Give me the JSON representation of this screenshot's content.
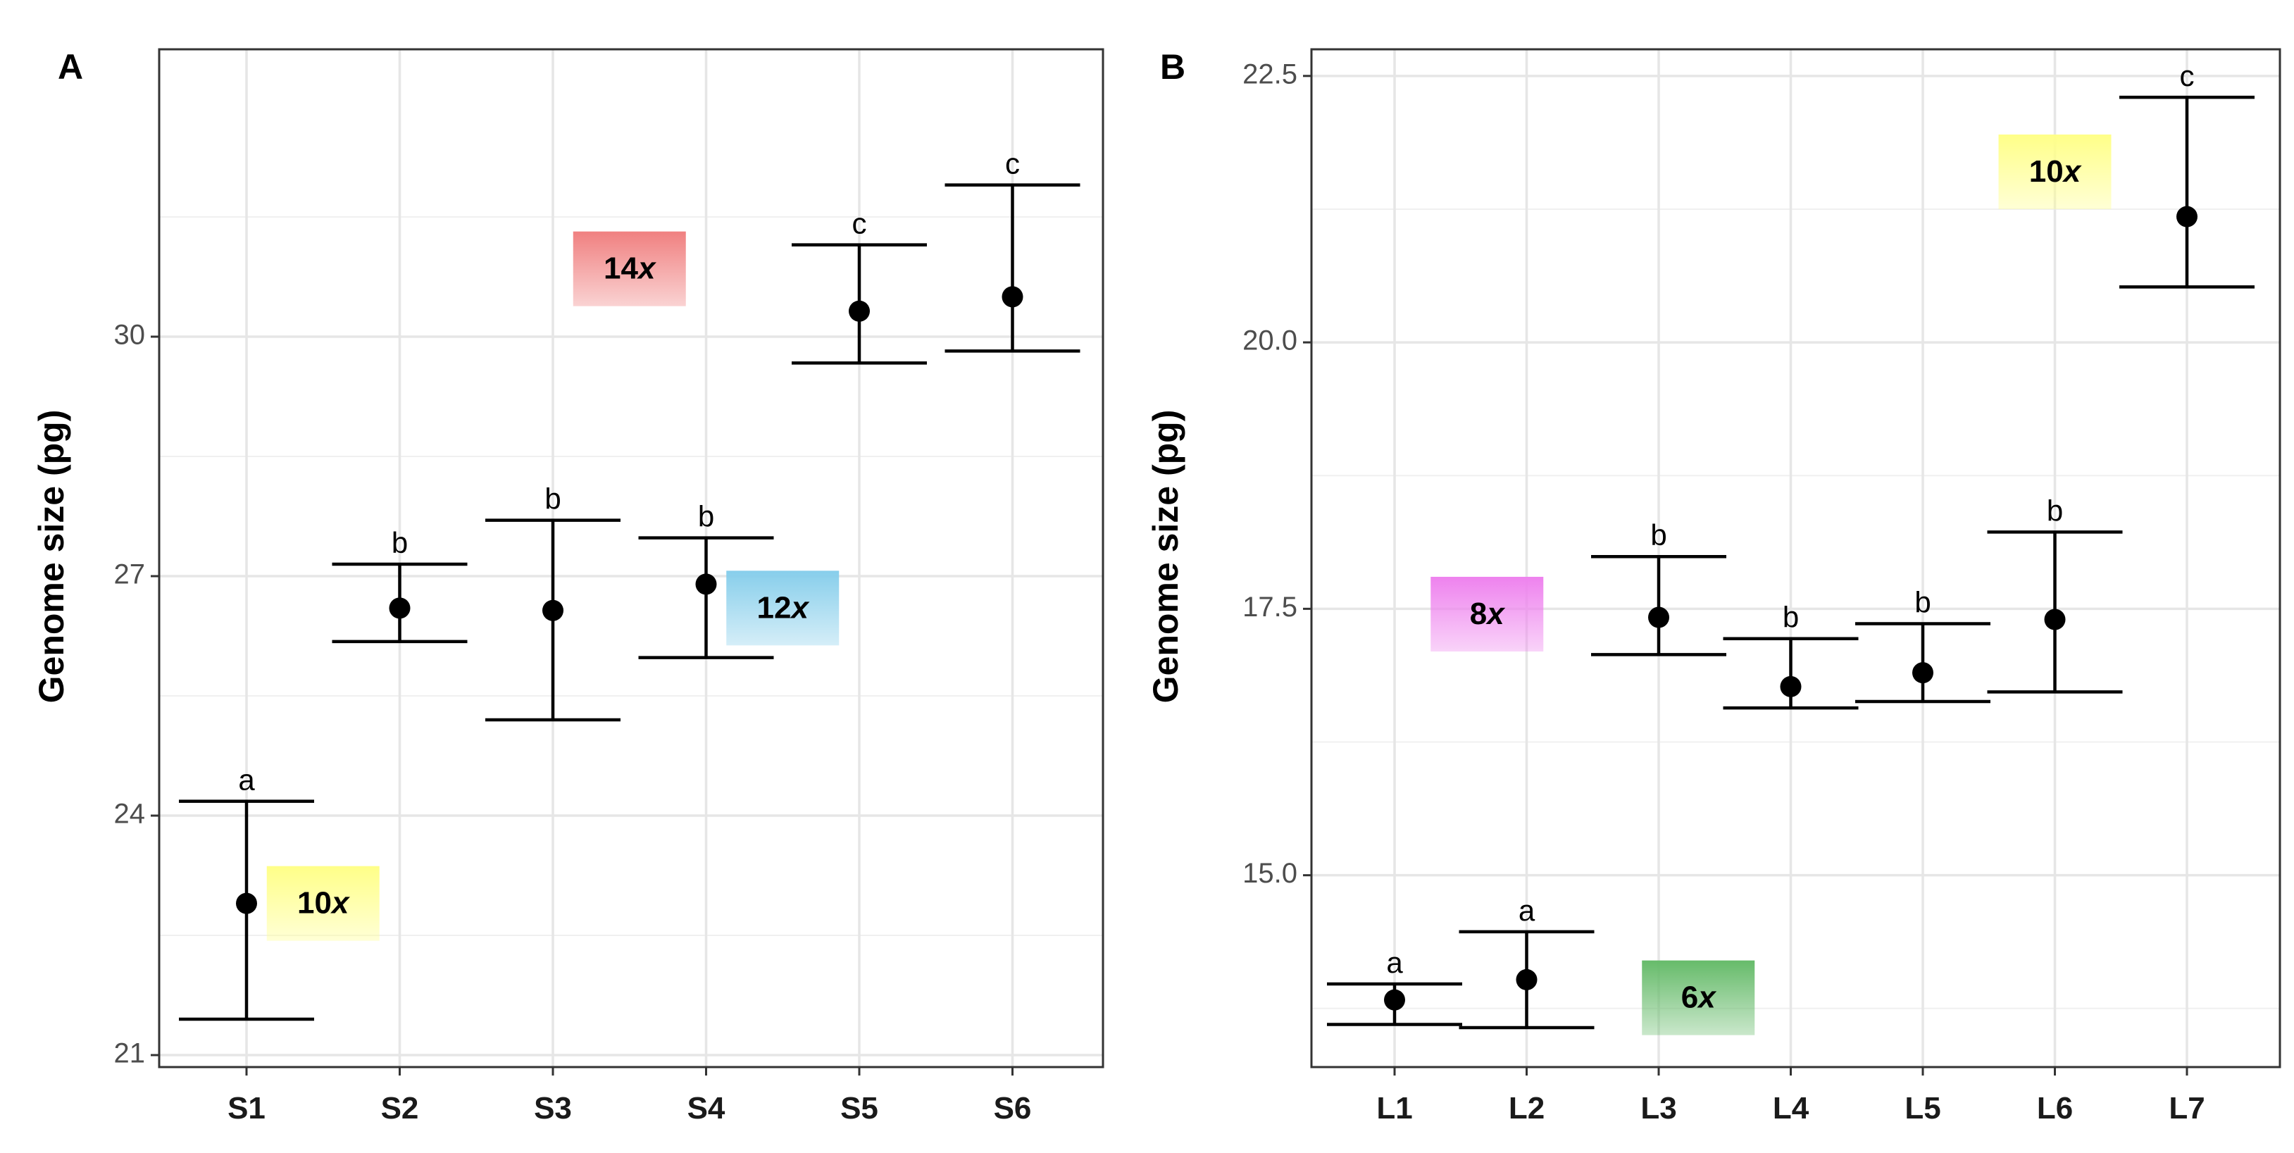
{
  "chart_data": [
    {
      "type": "scatter",
      "panel": "A",
      "ylabel": "Genome size (pg)",
      "xlabel": "",
      "categories": [
        "S1",
        "S2",
        "S3",
        "S4",
        "S5",
        "S6"
      ],
      "ylim": [
        20.85,
        33.6
      ],
      "yticks": [
        21,
        24,
        27,
        30
      ],
      "ytick_labels": [
        "21",
        "24",
        "27",
        "30"
      ],
      "grid": true,
      "points": [
        {
          "x": "S1",
          "mean": 22.9,
          "lower": 21.45,
          "upper": 24.18,
          "group": "a"
        },
        {
          "x": "S2",
          "mean": 26.6,
          "lower": 26.18,
          "upper": 27.15,
          "group": "b"
        },
        {
          "x": "S3",
          "mean": 26.57,
          "lower": 25.2,
          "upper": 27.7,
          "group": "b"
        },
        {
          "x": "S4",
          "mean": 26.9,
          "lower": 25.98,
          "upper": 27.48,
          "group": "b"
        },
        {
          "x": "S5",
          "mean": 30.32,
          "lower": 29.67,
          "upper": 31.15,
          "group": "c"
        },
        {
          "x": "S6",
          "mean": 30.5,
          "lower": 29.82,
          "upper": 31.9,
          "group": "c"
        }
      ],
      "annotations": [
        {
          "label": "14x",
          "num": "14",
          "unit": "x",
          "color": "#f08080",
          "x_pos": 3.5,
          "y": 30.85
        },
        {
          "label": "12x",
          "num": "12",
          "unit": "x",
          "color": "#87ceeb",
          "x_pos": 4.5,
          "y": 26.6
        },
        {
          "label": "10x",
          "num": "10",
          "unit": "x",
          "color": "#ffff88",
          "x_pos": 1.5,
          "y": 22.9
        }
      ]
    },
    {
      "type": "scatter",
      "panel": "B",
      "ylabel": "Genome size (pg)",
      "xlabel": "",
      "categories": [
        "L1",
        "L2",
        "L3",
        "L4",
        "L5",
        "L6",
        "L7"
      ],
      "ylim": [
        13.2,
        22.75
      ],
      "yticks": [
        15.0,
        17.5,
        20.0,
        22.5
      ],
      "ytick_labels": [
        "15.0",
        "17.5",
        "20.0",
        "22.5"
      ],
      "grid": true,
      "points": [
        {
          "x": "L1",
          "mean": 13.83,
          "lower": 13.6,
          "upper": 13.98,
          "group": "a"
        },
        {
          "x": "L2",
          "mean": 14.02,
          "lower": 13.57,
          "upper": 14.47,
          "group": "a"
        },
        {
          "x": "L3",
          "mean": 17.42,
          "lower": 17.07,
          "upper": 17.99,
          "group": "b"
        },
        {
          "x": "L4",
          "mean": 16.77,
          "lower": 16.57,
          "upper": 17.22,
          "group": "b"
        },
        {
          "x": "L5",
          "mean": 16.9,
          "lower": 16.63,
          "upper": 17.36,
          "group": "b"
        },
        {
          "x": "L6",
          "mean": 17.4,
          "lower": 16.72,
          "upper": 18.22,
          "group": "b"
        },
        {
          "x": "L7",
          "mean": 21.18,
          "lower": 20.52,
          "upper": 22.3,
          "group": "c"
        }
      ],
      "annotations": [
        {
          "label": "10x",
          "num": "10",
          "unit": "x",
          "color": "#ffff88",
          "x_pos": 6.0,
          "y": 21.6
        },
        {
          "label": "8x",
          "num": "8",
          "unit": "x",
          "color": "#ee82ee",
          "x_pos": 1.7,
          "y": 17.45
        },
        {
          "label": "6x",
          "num": "6",
          "unit": "x",
          "color": "#66bb6a",
          "x_pos": 3.3,
          "y": 13.85
        }
      ]
    }
  ]
}
